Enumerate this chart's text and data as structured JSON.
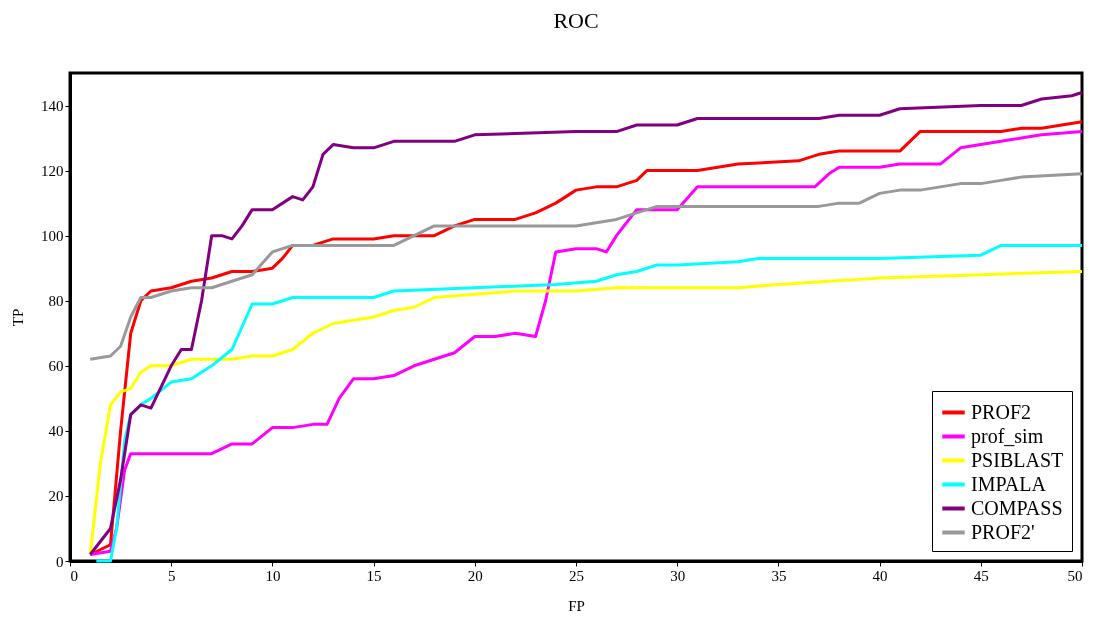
{
  "chart_data": {
    "type": "line",
    "title": "ROC",
    "xlabel": "FP",
    "ylabel": "TP",
    "xlim": [
      0,
      50
    ],
    "xticks": [
      0,
      5,
      10,
      15,
      20,
      25,
      30,
      35,
      40,
      45,
      50
    ],
    "ylim": [
      0,
      150
    ],
    "yticks": [
      0,
      20,
      40,
      60,
      80,
      100,
      120,
      140
    ],
    "grid": false,
    "legend": "bottom right",
    "marker": "none",
    "line_style": "solid",
    "series": [
      {
        "name": "PROF2",
        "color": "#ff0000",
        "x": [
          1,
          2,
          2.5,
          3,
          3.5,
          4,
          5,
          6,
          7,
          8,
          9,
          10,
          10.5,
          11,
          12,
          13,
          15,
          16,
          18,
          19,
          20,
          22,
          23,
          24,
          25,
          26,
          27,
          28,
          28.5,
          30,
          31,
          32,
          33,
          36,
          37,
          38,
          40,
          41,
          42,
          43,
          45,
          46,
          47,
          48,
          50
        ],
        "values": [
          2,
          5,
          40,
          70,
          80,
          83,
          84,
          86,
          87,
          89,
          89,
          90,
          93,
          97,
          97,
          99,
          99,
          100,
          100,
          103,
          105,
          105,
          107,
          110,
          114,
          115,
          115,
          117,
          120,
          120,
          120,
          121,
          122,
          123,
          125,
          126,
          126,
          126,
          132,
          132,
          132,
          132,
          133,
          133,
          135
        ]
      },
      {
        "name": "prof_sim",
        "color": "#ff00ff",
        "x": [
          1,
          2,
          2.3,
          2.7,
          3,
          4,
          7,
          8,
          9,
          10,
          11,
          12,
          12.7,
          13.3,
          14,
          15,
          16,
          17,
          18,
          19,
          20,
          21,
          22,
          23,
          23.5,
          24,
          25,
          26,
          26.5,
          27,
          28,
          29,
          30,
          31,
          32,
          33,
          35,
          36,
          36.8,
          37.5,
          38,
          39,
          40,
          41,
          42,
          43,
          44,
          45,
          46,
          47,
          48,
          50
        ],
        "values": [
          2,
          3,
          10,
          28,
          33,
          33,
          33,
          36,
          36,
          41,
          41,
          42,
          42,
          50,
          56,
          56,
          57,
          60,
          62,
          64,
          69,
          69,
          70,
          69,
          80,
          95,
          96,
          96,
          95,
          100,
          108,
          108,
          108,
          115,
          115,
          115,
          115,
          115,
          115,
          119,
          121,
          121,
          121,
          122,
          122,
          122,
          127,
          128,
          129,
          130,
          131,
          132
        ]
      },
      {
        "name": "PSIBLAST",
        "color": "#ffff00",
        "x": [
          1,
          1.5,
          2,
          2.5,
          3,
          3.5,
          4,
          5,
          6,
          8,
          9,
          10,
          11,
          12,
          13,
          14,
          15,
          16,
          17,
          18,
          20,
          22,
          25,
          27,
          30,
          33,
          35,
          40,
          45,
          50
        ],
        "values": [
          2,
          30,
          48,
          52,
          53,
          58,
          60,
          60,
          62,
          62,
          63,
          63,
          65,
          70,
          73,
          74,
          75,
          77,
          78,
          81,
          82,
          83,
          83,
          84,
          84,
          84,
          85,
          87,
          88,
          89
        ]
      },
      {
        "name": "IMPALA",
        "color": "#00ffff",
        "x": [
          1.3,
          2,
          2.3,
          2.7,
          3,
          3.5,
          4,
          5,
          6,
          7,
          8,
          8.5,
          9,
          10,
          11,
          15,
          16,
          20,
          24,
          26,
          27,
          28,
          29,
          30,
          33,
          34,
          40,
          45,
          46,
          50
        ],
        "values": [
          0,
          0,
          10,
          37,
          45,
          48,
          50,
          55,
          56,
          60,
          65,
          72,
          79,
          79,
          81,
          81,
          83,
          84,
          85,
          86,
          88,
          89,
          91,
          91,
          92,
          93,
          93,
          94,
          97,
          97
        ]
      },
      {
        "name": "COMPASS",
        "color": "#800080",
        "x": [
          1,
          2,
          2.5,
          3,
          3.5,
          4,
          5,
          5.5,
          6,
          6.5,
          7,
          7.5,
          8,
          8.5,
          9,
          10,
          11,
          11.5,
          12,
          12.5,
          13,
          14,
          15,
          16,
          19,
          20,
          25,
          26,
          27,
          28,
          30,
          31,
          36,
          37,
          38,
          40,
          41,
          45,
          47,
          48,
          49.5,
          50
        ],
        "values": [
          2,
          10,
          25,
          45,
          48,
          47,
          60,
          65,
          65,
          80,
          100,
          100,
          99,
          103,
          108,
          108,
          112,
          111,
          115,
          125,
          128,
          127,
          127,
          129,
          129,
          131,
          132,
          132,
          132,
          134,
          134,
          136,
          136,
          136,
          137,
          137,
          139,
          140,
          140,
          142,
          143,
          144
        ]
      },
      {
        "name": "PROF2'",
        "color": "#999999",
        "x": [
          1,
          2,
          2.5,
          3,
          3.5,
          4,
          5,
          6,
          7,
          8,
          9,
          10,
          11,
          15,
          16,
          17,
          18,
          20,
          23,
          25,
          26,
          27,
          28,
          29,
          30,
          35,
          37,
          38,
          39,
          40,
          41,
          42,
          43,
          44,
          45,
          46,
          47,
          50
        ],
        "values": [
          62,
          63,
          66,
          75,
          81,
          81,
          83,
          84,
          84,
          86,
          88,
          95,
          97,
          97,
          97,
          100,
          103,
          103,
          103,
          103,
          104,
          105,
          107,
          109,
          109,
          109,
          109,
          110,
          110,
          113,
          114,
          114,
          115,
          116,
          116,
          117,
          118,
          119
        ]
      }
    ]
  }
}
